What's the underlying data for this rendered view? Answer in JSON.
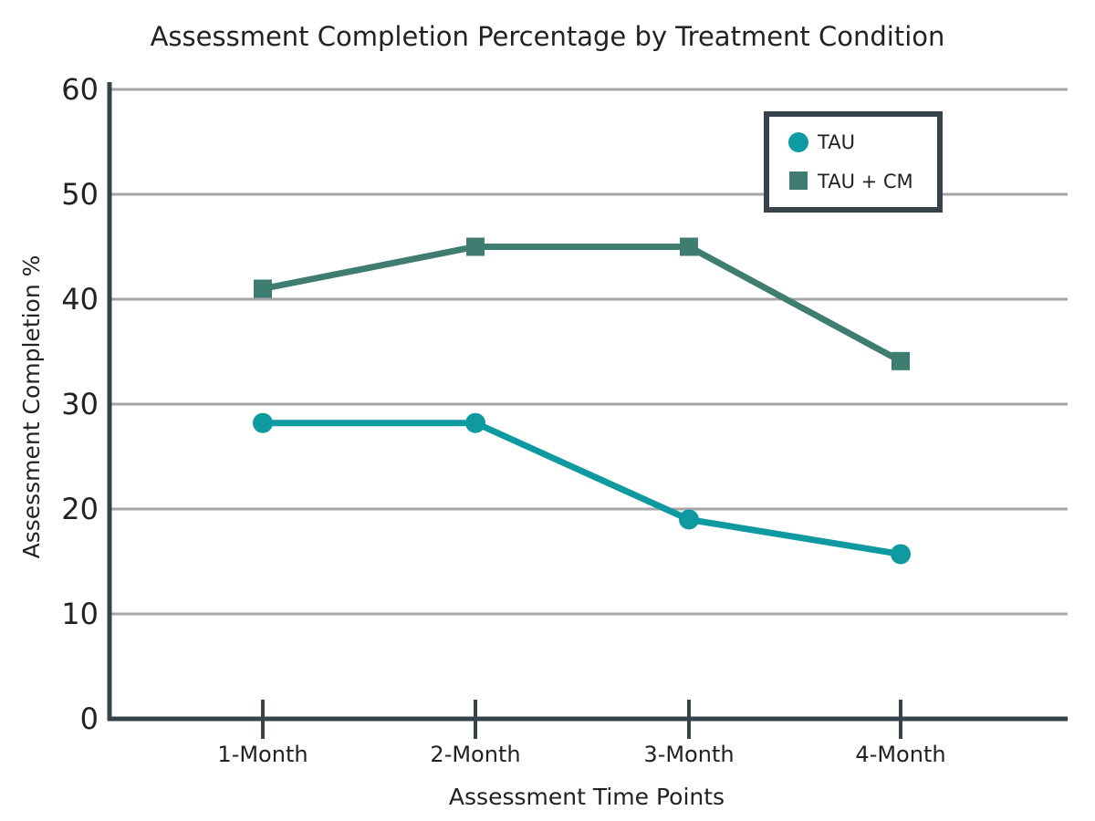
{
  "chart_data": {
    "type": "line",
    "title": "Assessment Completion Percentage by Treatment Condition",
    "xlabel": "Assessment Time Points",
    "ylabel": "Assessment Completion %",
    "categories": [
      "1-Month",
      "2-Month",
      "3-Month",
      "4-Month"
    ],
    "ylim": [
      0,
      60
    ],
    "yticks": [
      0,
      10,
      20,
      30,
      40,
      50,
      60
    ],
    "grid": true,
    "legend_position": "top-right",
    "series": [
      {
        "name": "TAU",
        "marker": "circle",
        "color": "#0e9aa0",
        "values": [
          28.2,
          28.2,
          19.0,
          15.7
        ]
      },
      {
        "name": "TAU + CM",
        "marker": "square",
        "color": "#3f7d70",
        "values": [
          41.0,
          45.0,
          45.0,
          34.1
        ]
      }
    ]
  },
  "colors": {
    "axis": "#37434a",
    "grid": "#a6a6a6",
    "legend_border": "#37434a"
  }
}
